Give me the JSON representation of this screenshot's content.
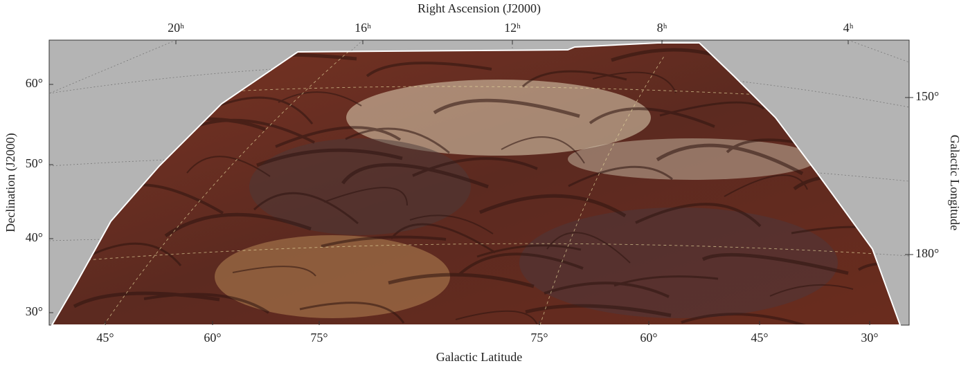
{
  "axes": {
    "top": {
      "label": "Right Ascension (J2000)",
      "ticks": [
        "20ʰ",
        "16ʰ",
        "12ʰ",
        "8ʰ",
        "4ʰ"
      ]
    },
    "left": {
      "label": "Declination (J2000)",
      "ticks": [
        "60°",
        "50°",
        "40°",
        "30°"
      ]
    },
    "right": {
      "label": "Galactic Longitude",
      "ticks": [
        "150°",
        "180°"
      ]
    },
    "bottom": {
      "label": "Galactic Latitude",
      "ticks": [
        "45°",
        "60°",
        "75°",
        "75°",
        "60°",
        "45°",
        "30°"
      ]
    }
  }
}
